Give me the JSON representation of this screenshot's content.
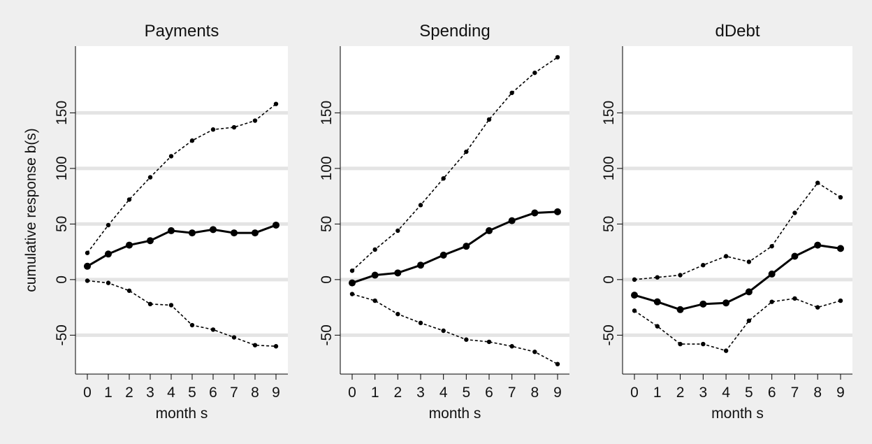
{
  "figure": {
    "ylabel": "cumulative response b(s)",
    "xlabel": "month s",
    "colors": {
      "background": "#efefef",
      "plot_area": "#ffffff",
      "gridline": "#e4e4e4",
      "line": "#000000"
    }
  },
  "chart_data": [
    {
      "type": "line",
      "title": "Payments",
      "xlabel": "month s",
      "ylabel": "cumulative response b(s)",
      "x": [
        0,
        1,
        2,
        3,
        4,
        5,
        6,
        7,
        8,
        9
      ],
      "x_ticks": [
        0,
        1,
        2,
        3,
        4,
        5,
        6,
        7,
        8,
        9
      ],
      "y_ticks": [
        -50,
        0,
        50,
        100,
        150
      ],
      "ylim": [
        -85,
        210
      ],
      "grid": true,
      "series": [
        {
          "role": "upper",
          "style": "dashed",
          "values": [
            24,
            49,
            72,
            92,
            111,
            125,
            135,
            137,
            143,
            158
          ]
        },
        {
          "role": "estimate",
          "style": "solid",
          "values": [
            12,
            23,
            31,
            35,
            44,
            42,
            45,
            42,
            42,
            49
          ]
        },
        {
          "role": "lower",
          "style": "dashed",
          "values": [
            -1,
            -3,
            -10,
            -22,
            -23,
            -41,
            -45,
            -52,
            -59,
            -60
          ]
        }
      ]
    },
    {
      "type": "line",
      "title": "Spending",
      "xlabel": "month s",
      "ylabel": "",
      "x": [
        0,
        1,
        2,
        3,
        4,
        5,
        6,
        7,
        8,
        9
      ],
      "x_ticks": [
        0,
        1,
        2,
        3,
        4,
        5,
        6,
        7,
        8,
        9
      ],
      "y_ticks": [
        -50,
        0,
        50,
        100,
        150
      ],
      "ylim": [
        -85,
        210
      ],
      "grid": true,
      "series": [
        {
          "role": "upper",
          "style": "dashed",
          "values": [
            8,
            27,
            44,
            67,
            91,
            115,
            144,
            168,
            186,
            200
          ]
        },
        {
          "role": "estimate",
          "style": "solid",
          "values": [
            -3,
            4,
            6,
            13,
            22,
            30,
            44,
            53,
            60,
            61
          ]
        },
        {
          "role": "lower",
          "style": "dashed",
          "values": [
            -13,
            -19,
            -31,
            -39,
            -46,
            -54,
            -56,
            -60,
            -65,
            -76
          ]
        }
      ]
    },
    {
      "type": "line",
      "title": "dDebt",
      "xlabel": "month s",
      "ylabel": "",
      "x": [
        0,
        1,
        2,
        3,
        4,
        5,
        6,
        7,
        8,
        9
      ],
      "x_ticks": [
        0,
        1,
        2,
        3,
        4,
        5,
        6,
        7,
        8,
        9
      ],
      "y_ticks": [
        -50,
        0,
        50,
        100,
        150
      ],
      "ylim": [
        -85,
        210
      ],
      "grid": true,
      "series": [
        {
          "role": "upper",
          "style": "dashed",
          "values": [
            0,
            2,
            4,
            13,
            21,
            16,
            30,
            60,
            87,
            74
          ]
        },
        {
          "role": "estimate",
          "style": "solid",
          "values": [
            -14,
            -20,
            -27,
            -22,
            -21,
            -11,
            5,
            21,
            31,
            28
          ]
        },
        {
          "role": "lower",
          "style": "dashed",
          "values": [
            -28,
            -42,
            -58,
            -58,
            -64,
            -37,
            -20,
            -17,
            -25,
            -19
          ]
        }
      ]
    }
  ]
}
